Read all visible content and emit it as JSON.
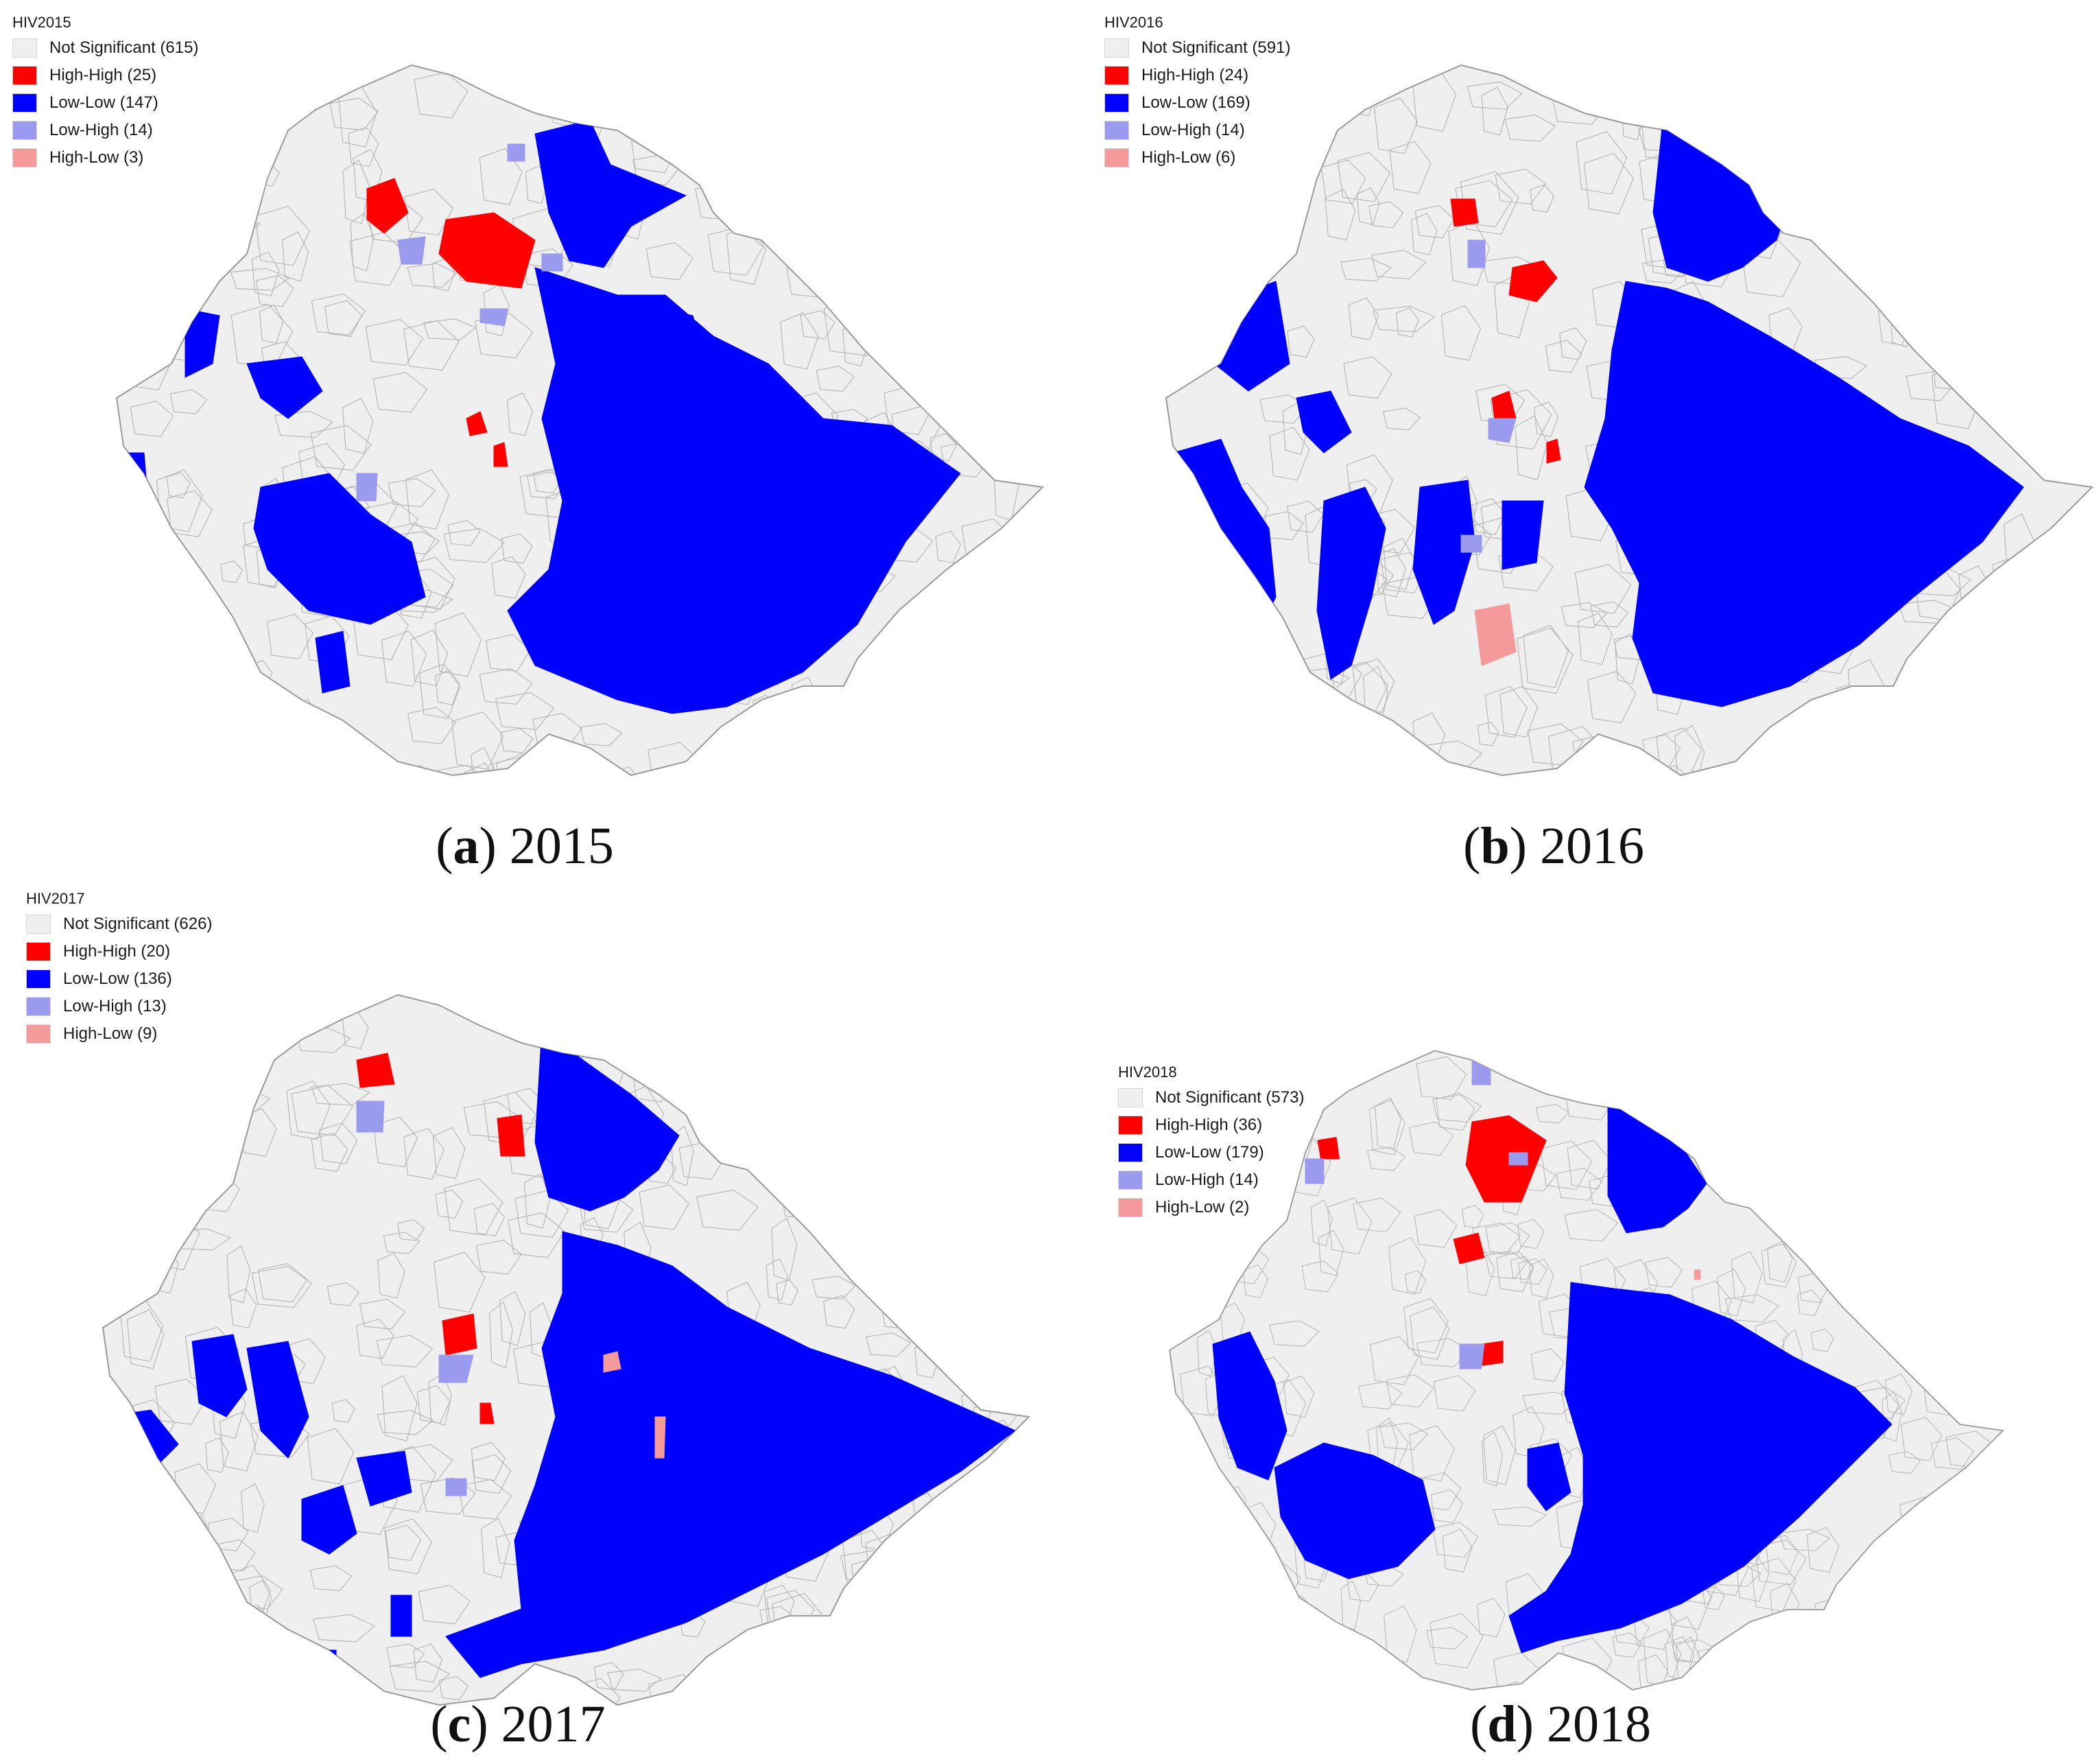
{
  "colors": {
    "not_significant": "#efefef",
    "high_high": "#ff0000",
    "low_low": "#0000ff",
    "low_high": "#9a9aee",
    "high_low": "#f59a9a",
    "boundary": "#b8b8b8"
  },
  "panels": [
    {
      "id": "a",
      "legend": {
        "title": "HIV2015",
        "items": [
          {
            "label": "Not Significant (615)",
            "category": "not_significant"
          },
          {
            "label": "High-High (25)",
            "category": "high_high"
          },
          {
            "label": "Low-Low (147)",
            "category": "low_low"
          },
          {
            "label": "Low-High (14)",
            "category": "low_high"
          },
          {
            "label": "High-Low (3)",
            "category": "high_low"
          }
        ]
      },
      "caption": {
        "letter": "a",
        "year": "2015"
      }
    },
    {
      "id": "b",
      "legend": {
        "title": "HIV2016",
        "items": [
          {
            "label": "Not Significant (591)",
            "category": "not_significant"
          },
          {
            "label": "High-High (24)",
            "category": "high_high"
          },
          {
            "label": "Low-Low (169)",
            "category": "low_low"
          },
          {
            "label": "Low-High (14)",
            "category": "low_high"
          },
          {
            "label": "High-Low (6)",
            "category": "high_low"
          }
        ]
      },
      "caption": {
        "letter": "b",
        "year": "2016"
      }
    },
    {
      "id": "c",
      "legend": {
        "title": "HIV2017",
        "items": [
          {
            "label": "Not Significant (626)",
            "category": "not_significant"
          },
          {
            "label": "High-High (20)",
            "category": "high_high"
          },
          {
            "label": "Low-Low (136)",
            "category": "low_low"
          },
          {
            "label": "Low-High (13)",
            "category": "low_high"
          },
          {
            "label": "High-Low (9)",
            "category": "high_low"
          }
        ]
      },
      "caption": {
        "letter": "c",
        "year": "2017"
      }
    },
    {
      "id": "d",
      "legend": {
        "title": "HIV2018",
        "items": [
          {
            "label": "Not Significant (573)",
            "category": "not_significant"
          },
          {
            "label": "High-High (36)",
            "category": "high_high"
          },
          {
            "label": "Low-Low (179)",
            "category": "low_low"
          },
          {
            "label": "Low-High (14)",
            "category": "low_high"
          },
          {
            "label": "High-Low (2)",
            "category": "high_low"
          }
        ]
      },
      "caption": {
        "letter": "d",
        "year": "2018"
      }
    }
  ]
}
